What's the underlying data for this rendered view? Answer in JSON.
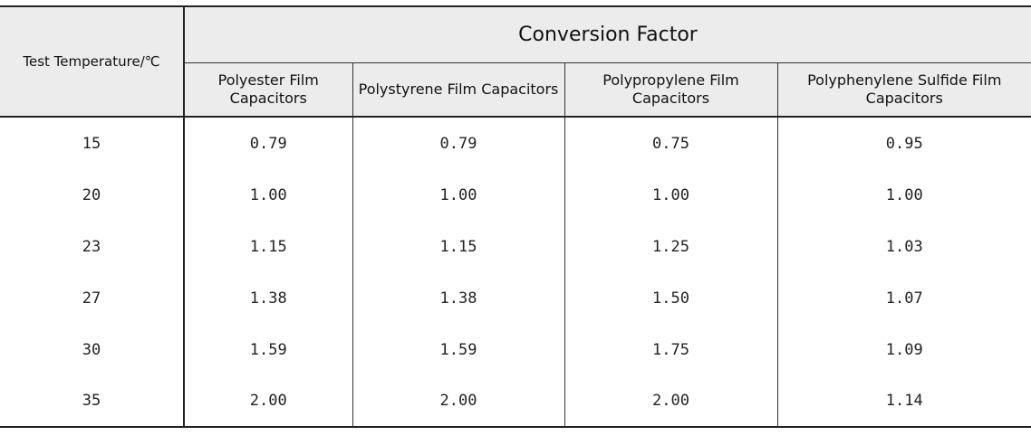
{
  "table": {
    "temp_header": "Test Temperature/℃",
    "group_header": "Conversion Factor",
    "columns": [
      "Polyester Film Capacitors",
      "Polystyrene Film Capacitors",
      "Polypropylene Film Capacitors",
      "Polyphenylene Sulfide Film Capacitors"
    ],
    "rows": [
      {
        "temp": "15",
        "values": [
          "0.79",
          "0.79",
          "0.75",
          "0.95"
        ]
      },
      {
        "temp": "20",
        "values": [
          "1.00",
          "1.00",
          "1.00",
          "1.00"
        ]
      },
      {
        "temp": "23",
        "values": [
          "1.15",
          "1.15",
          "1.25",
          "1.03"
        ]
      },
      {
        "temp": "27",
        "values": [
          "1.38",
          "1.38",
          "1.50",
          "1.07"
        ]
      },
      {
        "temp": "30",
        "values": [
          "1.59",
          "1.59",
          "1.75",
          "1.09"
        ]
      },
      {
        "temp": "35",
        "values": [
          "2.00",
          "2.00",
          "2.00",
          "1.14"
        ]
      }
    ]
  }
}
